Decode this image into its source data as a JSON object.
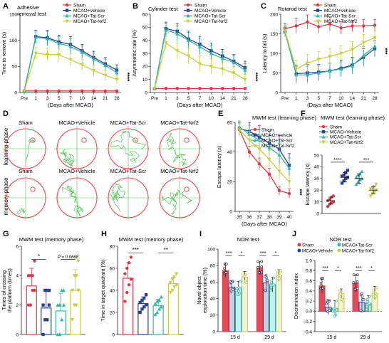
{
  "colors": {
    "Sham": "#d83a4a",
    "Vehicle": "#2b3f96",
    "TatScr": "#35b5a6",
    "TatNrf2": "#c7cf3f",
    "circle": "#ef4b4b",
    "platform": "#e2413a",
    "track": "#4cc24c",
    "axis": "#222222"
  },
  "panels": {
    "A": {
      "letter": "A",
      "title": "Adhesive removal test",
      "title1": "Adhesive",
      "title2": "removal test",
      "ylabel": "Time to remove (s)",
      "xlabel": "(Days after MCAO)",
      "sig": "****",
      "legend": [
        "Sham",
        "MCAO+Vehicle",
        "MCAO+Tat-Scr",
        "MCAO+Tat-Nrf2"
      ]
    },
    "B": {
      "letter": "B",
      "title": "Cylinder test",
      "ylabel": "Asymmetric rate (%)",
      "xlabel": "(Days after MCAO)",
      "sig": "****",
      "legend": [
        "Sham",
        "MCAO+Vehicle",
        "MCAO+Tat-Scr",
        "MCAO+Tat-Nrf2"
      ]
    },
    "C": {
      "letter": "C",
      "title": "Rotarod test",
      "ylabel": "Latency to fall (s)",
      "xlabel": "(Days after MCAO)",
      "sig": "***",
      "legend": [
        "Sham",
        "MCAO+Vehicle",
        "MCAO+Tat-Scr",
        "MCAO+Tat-Nrf2"
      ]
    },
    "D": {
      "letter": "D",
      "cols": [
        "Sham",
        "MCAO+Vehicle",
        "MCAO+Tat-Scr",
        "MCAO+Tat-Nrf2"
      ],
      "rows": [
        "learning phase",
        "memory phase"
      ]
    },
    "E": {
      "letter": "E",
      "title": "MWM test (learning phase)",
      "ylabel": "Escape latency (s)",
      "xlabel": "(Days after MCAO)",
      "sig": "***",
      "legend": [
        "Sham",
        "MCAO+vehicle",
        "MCAO+Tat-Scr",
        "MCAO+Tat-Nrf2"
      ]
    },
    "F": {
      "letter": "F",
      "title": "MWM test (learning phase)",
      "ylabel": "Escape latency (s)",
      "legend": [
        "Sham",
        "MCAO+Vehicle",
        "MCAO+Tat-Scr",
        "MCAO+Tat-Nrf2"
      ],
      "sig1": "****",
      "sig2": "***"
    },
    "G": {
      "letter": "G",
      "title": "MWM test (memory phase)",
      "ylabel1": "Times of crossing",
      "ylabel2": "the platform (times)",
      "sig1": "*",
      "pval": "P = 0.0668"
    },
    "H": {
      "letter": "H",
      "title": "MWM test (memory phase)",
      "ylabel": "Time in target quadrant (%)",
      "sig1": "***",
      "sig2": "**"
    },
    "I": {
      "letter": "I",
      "title": "NOR test",
      "ylabel1": "Novel object",
      "ylabel2": "exploration time (%)",
      "groups": [
        "15 d",
        "29 d"
      ],
      "sigs": [
        "***",
        "*",
        "***",
        "*"
      ]
    },
    "J": {
      "letter": "J",
      "title": "NOR test",
      "ylabel": "Discrimination index",
      "groups": [
        "15 d",
        "29 d"
      ],
      "sigs": [
        "***",
        "*",
        "***",
        "*"
      ],
      "legend": [
        "Sham",
        "MCAO+Vehicle",
        "MCAO+Tat-Scr",
        "MCAO+Tat-Nrf2"
      ]
    }
  },
  "chart_data": [
    {
      "id": "A",
      "type": "line",
      "title": "Adhesive removal test",
      "xlabel": "(Days after MCAO)",
      "ylabel": "Time to remove (s)",
      "x": [
        "Pre",
        "1",
        "3",
        "5",
        "7",
        "10",
        "14",
        "21",
        "28"
      ],
      "ylim": [
        0,
        150
      ],
      "yticks": [
        0,
        50,
        100,
        150
      ],
      "series": [
        {
          "name": "Sham",
          "values": [
            3,
            3,
            3,
            3,
            3,
            3,
            3,
            3,
            3
          ],
          "err": [
            1,
            1,
            1,
            1,
            1,
            1,
            1,
            1,
            1
          ]
        },
        {
          "name": "MCAO+Vehicle",
          "values": [
            3,
            107,
            105,
            97,
            92,
            80,
            67,
            55,
            43
          ],
          "err": [
            1,
            12,
            14,
            13,
            15,
            12,
            12,
            12,
            10
          ]
        },
        {
          "name": "MCAO+Tat-Scr",
          "values": [
            3,
            106,
            103,
            94,
            88,
            77,
            64,
            52,
            38
          ],
          "err": [
            1,
            12,
            14,
            13,
            15,
            12,
            12,
            12,
            10
          ]
        },
        {
          "name": "MCAO+Tat-Nrf2",
          "values": [
            3,
            75,
            73,
            72,
            63,
            53,
            42,
            33,
            25
          ],
          "err": [
            1,
            12,
            12,
            12,
            12,
            10,
            10,
            10,
            8
          ]
        }
      ]
    },
    {
      "id": "B",
      "type": "line",
      "title": "Cylinder test",
      "xlabel": "(Days after MCAO)",
      "ylabel": "Asymmetric rate (%)",
      "x": [
        "Pre",
        "1",
        "3",
        "5",
        "7",
        "10",
        "14",
        "21",
        "28"
      ],
      "ylim": [
        0,
        60
      ],
      "yticks": [
        0,
        10,
        20,
        30,
        40,
        50,
        60
      ],
      "series": [
        {
          "name": "Sham",
          "values": [
            3,
            3,
            3,
            3,
            3,
            3,
            3,
            3,
            3
          ],
          "err": [
            1,
            1,
            1,
            1,
            1,
            1,
            1,
            1,
            1
          ]
        },
        {
          "name": "MCAO+Vehicle",
          "values": [
            3,
            49,
            47,
            41,
            37,
            32,
            28,
            24,
            19
          ],
          "err": [
            1,
            5,
            6,
            6,
            6,
            6,
            5,
            5,
            5
          ]
        },
        {
          "name": "MCAO+Tat-Scr",
          "values": [
            3,
            48,
            45,
            40,
            35,
            30,
            26,
            23,
            17
          ],
          "err": [
            1,
            5,
            6,
            6,
            6,
            6,
            5,
            5,
            5
          ]
        },
        {
          "name": "MCAO+Tat-Nrf2",
          "values": [
            3,
            38,
            32,
            28,
            22,
            20,
            18,
            15,
            10
          ],
          "err": [
            1,
            5,
            6,
            6,
            6,
            6,
            5,
            5,
            4
          ]
        }
      ]
    },
    {
      "id": "C",
      "type": "line",
      "title": "Rotarod test",
      "xlabel": "(Days after MCAO)",
      "ylabel": "Latency to fall (s)",
      "x": [
        "Pre",
        "1",
        "3",
        "5",
        "7",
        "10",
        "14",
        "21",
        "28"
      ],
      "ylim": [
        0,
        200
      ],
      "yticks": [
        0,
        50,
        100,
        150,
        200
      ],
      "series": [
        {
          "name": "Sham",
          "values": [
            163,
            170,
            180,
            168,
            175,
            165,
            170,
            170,
            172
          ],
          "err": [
            14,
            18,
            18,
            16,
            18,
            16,
            15,
            16,
            14
          ]
        },
        {
          "name": "MCAO+Vehicle",
          "values": [
            155,
            48,
            50,
            52,
            55,
            62,
            70,
            90,
            112
          ],
          "err": [
            12,
            22,
            22,
            20,
            20,
            20,
            20,
            22,
            20
          ]
        },
        {
          "name": "MCAO+Tat-Scr",
          "values": [
            156,
            45,
            45,
            50,
            55,
            60,
            68,
            95,
            118
          ],
          "err": [
            12,
            22,
            22,
            20,
            20,
            20,
            20,
            22,
            20
          ]
        },
        {
          "name": "MCAO+Tat-Nrf2",
          "values": [
            158,
            60,
            75,
            85,
            92,
            100,
            110,
            128,
            140
          ],
          "err": [
            12,
            22,
            22,
            20,
            20,
            20,
            20,
            20,
            18
          ]
        }
      ]
    },
    {
      "id": "E",
      "type": "line",
      "title": "MWM test (learning phase)",
      "xlabel": "(Days after MCAO)",
      "ylabel": "Escape latency (s)",
      "x": [
        "35",
        "36",
        "37",
        "38",
        "39",
        "40"
      ],
      "ylim": [
        0,
        60
      ],
      "yticks": [
        0,
        20,
        40,
        60
      ],
      "series": [
        {
          "name": "Sham",
          "values": [
            55,
            40,
            32,
            25,
            14,
            12
          ],
          "err": [
            4,
            4,
            4,
            4,
            3,
            3
          ]
        },
        {
          "name": "MCAO+vehicle",
          "values": [
            56,
            54,
            50,
            46,
            42,
            31
          ],
          "err": [
            4,
            6,
            8,
            8,
            9,
            8
          ]
        },
        {
          "name": "MCAO+Tat-Scr",
          "values": [
            57,
            52,
            48,
            43,
            38,
            29
          ],
          "err": [
            4,
            6,
            7,
            8,
            8,
            7
          ]
        },
        {
          "name": "MCAO+Tat-Nrf2",
          "values": [
            55,
            48,
            42,
            35,
            27,
            20
          ],
          "err": [
            4,
            6,
            6,
            6,
            6,
            5
          ]
        }
      ]
    },
    {
      "id": "F",
      "type": "scatter",
      "title": "MWM test (learning phase)",
      "ylabel": "Escape latency (s)",
      "ylim": [
        0,
        50
      ],
      "yticks": [
        0,
        10,
        20,
        30,
        40,
        50
      ],
      "categories": [
        "Sham",
        "MCAO+Vehicle",
        "MCAO+Tat-Scr",
        "MCAO+Tat-Nrf2"
      ],
      "series": [
        {
          "name": "Sham",
          "mean": 11,
          "sd": 3,
          "points": [
            6,
            8,
            9,
            10,
            11,
            12,
            14,
            15
          ]
        },
        {
          "name": "MCAO+Vehicle",
          "mean": 31,
          "sd": 4,
          "points": [
            26,
            28,
            30,
            31,
            32,
            33,
            35,
            37
          ]
        },
        {
          "name": "MCAO+Tat-Scr",
          "mean": 30,
          "sd": 4,
          "points": [
            25,
            27,
            29,
            30,
            31,
            33,
            34,
            36
          ]
        },
        {
          "name": "MCAO+Tat-Nrf2",
          "mean": 20,
          "sd": 3,
          "points": [
            15,
            17,
            18,
            20,
            21,
            22,
            23,
            25
          ]
        }
      ]
    },
    {
      "id": "G",
      "type": "bar",
      "title": "MWM test (memory phase)",
      "ylabel": "Times of crossing the platform (times)",
      "ylim": [
        0,
        6
      ],
      "yticks": [
        0,
        2,
        4,
        6
      ],
      "categories": [
        "Sham",
        "MCAO+Vehicle",
        "MCAO+Tat-Scr",
        "MCAO+Tat-Nrf2"
      ],
      "series": [
        {
          "name": "Sham",
          "mean": 3.3,
          "sd": 1.2,
          "points": [
            2,
            2,
            3,
            3,
            4,
            4,
            4,
            5
          ]
        },
        {
          "name": "MCAO+Vehicle",
          "mean": 1.8,
          "sd": 1.2,
          "points": [
            0,
            1,
            1,
            2,
            2,
            3,
            3,
            3
          ]
        },
        {
          "name": "MCAO+Tat-Scr",
          "mean": 1.6,
          "sd": 1.2,
          "points": [
            0,
            0,
            1,
            2,
            2,
            2,
            3,
            3
          ]
        },
        {
          "name": "MCAO+Tat-Nrf2",
          "mean": 3.0,
          "sd": 1.4,
          "points": [
            1,
            2,
            2,
            3,
            3,
            4,
            4,
            5
          ]
        }
      ]
    },
    {
      "id": "H",
      "type": "bar",
      "title": "MWM test (memory phase)",
      "ylabel": "Time in target quadrant (%)",
      "ylim": [
        0,
        80
      ],
      "yticks": [
        0,
        20,
        40,
        60,
        80
      ],
      "categories": [
        "Sham",
        "MCAO+Vehicle",
        "MCAO+Tat-Scr",
        "MCAO+Tat-Nrf2"
      ],
      "series": [
        {
          "name": "Sham",
          "mean": 51,
          "sd": 14,
          "points": [
            30,
            38,
            45,
            50,
            55,
            60,
            65,
            70
          ]
        },
        {
          "name": "MCAO+Vehicle",
          "mean": 28,
          "sd": 6,
          "points": [
            20,
            23,
            25,
            27,
            29,
            31,
            33,
            36
          ]
        },
        {
          "name": "MCAO+Tat-Scr",
          "mean": 26,
          "sd": 6,
          "points": [
            18,
            20,
            23,
            25,
            28,
            30,
            31,
            34
          ]
        },
        {
          "name": "MCAO+Tat-Nrf2",
          "mean": 46,
          "sd": 6,
          "points": [
            38,
            40,
            43,
            45,
            47,
            50,
            52,
            55
          ]
        }
      ]
    },
    {
      "id": "I",
      "type": "bar",
      "title": "NOR test",
      "ylabel": "Novel object exploration time (%)",
      "ylim": [
        0,
        100
      ],
      "yticks": [
        0,
        20,
        40,
        60,
        80,
        100
      ],
      "categories": [
        "15 d",
        "29 d"
      ],
      "series": [
        {
          "name": "Sham",
          "values": [
            74,
            77
          ],
          "sd": [
            8,
            8
          ]
        },
        {
          "name": "MCAO+Vehicle",
          "values": [
            54,
            59
          ],
          "sd": [
            8,
            9
          ]
        },
        {
          "name": "MCAO+Tat-Scr",
          "values": [
            53,
            57
          ],
          "sd": [
            8,
            9
          ]
        },
        {
          "name": "MCAO+Tat-Nrf2",
          "values": [
            66,
            68
          ],
          "sd": [
            7,
            7
          ]
        }
      ]
    },
    {
      "id": "J",
      "type": "bar",
      "title": "NOR test",
      "ylabel": "Discrimination index",
      "ylim": [
        -0.4,
        1.0
      ],
      "yticks": [
        -0.4,
        -0.2,
        0.0,
        0.2,
        0.4,
        0.6,
        0.8,
        1.0
      ],
      "categories": [
        "15 d",
        "29 d"
      ],
      "series": [
        {
          "name": "Sham",
          "values": [
            0.5,
            0.55
          ],
          "sd": [
            0.15,
            0.17
          ]
        },
        {
          "name": "MCAO+Vehicle",
          "values": [
            0.08,
            0.18
          ],
          "sd": [
            0.15,
            0.17
          ]
        },
        {
          "name": "MCAO+Tat-Scr",
          "values": [
            0.06,
            0.15
          ],
          "sd": [
            0.15,
            0.16
          ]
        },
        {
          "name": "MCAO+Tat-Nrf2",
          "values": [
            0.32,
            0.36
          ],
          "sd": [
            0.12,
            0.13
          ]
        }
      ]
    }
  ]
}
